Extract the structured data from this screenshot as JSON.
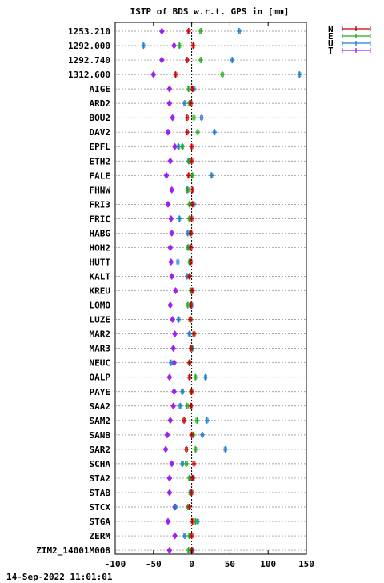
{
  "chart_data": {
    "type": "scatter",
    "title": "ISTP of BDS w.r.t. GPS in [mm]",
    "timestamp": "14-Sep-2022 11:01:01",
    "xlim": [
      -100,
      150
    ],
    "xticks": [
      -100,
      -50,
      0,
      50,
      100,
      150
    ],
    "grid": true,
    "legend_position": "top-right",
    "zero_line": true,
    "series": [
      {
        "name": "N",
        "color": "#cc0000"
      },
      {
        "name": "E",
        "color": "#22aa22"
      },
      {
        "name": "U",
        "color": "#1f7fd0"
      },
      {
        "name": "T",
        "color": "#a020f0"
      }
    ],
    "stations": [
      {
        "name": "1253.210",
        "values": [
          -4,
          12,
          62,
          -39
        ]
      },
      {
        "name": "1292.000",
        "values": [
          2,
          -16,
          -63,
          -23
        ]
      },
      {
        "name": "1292.740",
        "values": [
          -6,
          12,
          53,
          -39
        ]
      },
      {
        "name": "1312.600",
        "values": [
          -21,
          40,
          141,
          -50
        ]
      },
      {
        "name": "AIGE",
        "values": [
          1,
          -4,
          3,
          -29
        ]
      },
      {
        "name": "ARD2",
        "values": [
          -1,
          -3,
          -9,
          -29
        ]
      },
      {
        "name": "BOU2",
        "values": [
          -6,
          3,
          13,
          -25
        ]
      },
      {
        "name": "DAV2",
        "values": [
          -6,
          8,
          30,
          -31
        ]
      },
      {
        "name": "EPFL",
        "values": [
          0,
          -12,
          -17,
          -22
        ]
      },
      {
        "name": "ETH2",
        "values": [
          0,
          -3,
          -4,
          -28
        ]
      },
      {
        "name": "FALE",
        "values": [
          -4,
          1,
          26,
          -33
        ]
      },
      {
        "name": "FHNW",
        "values": [
          1,
          -5,
          -6,
          -26
        ]
      },
      {
        "name": "FRI3",
        "values": [
          1,
          -3,
          3,
          -31
        ]
      },
      {
        "name": "FRIC",
        "values": [
          0,
          -3,
          -16,
          -27
        ]
      },
      {
        "name": "HABG",
        "values": [
          -1,
          -1,
          -5,
          -26
        ]
      },
      {
        "name": "HOH2",
        "values": [
          -1,
          -5,
          -4,
          -28
        ]
      },
      {
        "name": "HUTT",
        "values": [
          -1,
          -3,
          -18,
          -27
        ]
      },
      {
        "name": "KALT",
        "values": [
          -3,
          -3,
          -6,
          -26
        ]
      },
      {
        "name": "KREU",
        "values": [
          1,
          -1,
          0,
          -21
        ]
      },
      {
        "name": "LOMO",
        "values": [
          -1,
          -5,
          0,
          -28
        ]
      },
      {
        "name": "LUZE",
        "values": [
          -2,
          -1,
          -17,
          -25
        ]
      },
      {
        "name": "MAR2",
        "values": [
          3,
          3,
          -3,
          -22
        ]
      },
      {
        "name": "MAR3",
        "values": [
          -1,
          0,
          1,
          -24
        ]
      },
      {
        "name": "NEUC",
        "values": [
          -3,
          -3,
          -27,
          -23
        ]
      },
      {
        "name": "OALP",
        "values": [
          -3,
          5,
          18,
          -29
        ]
      },
      {
        "name": "PAYE",
        "values": [
          0,
          -1,
          -12,
          -23
        ]
      },
      {
        "name": "SAA2",
        "values": [
          -1,
          -6,
          -15,
          -24
        ]
      },
      {
        "name": "SAM2",
        "values": [
          -10,
          7,
          20,
          -28
        ]
      },
      {
        "name": "SANB",
        "values": [
          0,
          2,
          14,
          -32
        ]
      },
      {
        "name": "SAR2",
        "values": [
          -7,
          5,
          44,
          -34
        ]
      },
      {
        "name": "SCHA",
        "values": [
          3,
          -7,
          -12,
          -26
        ]
      },
      {
        "name": "STA2",
        "values": [
          1,
          -3,
          2,
          -29
        ]
      },
      {
        "name": "STAB",
        "values": [
          0,
          -2,
          -1,
          -29
        ]
      },
      {
        "name": "STCX",
        "values": [
          -3,
          -5,
          -21,
          -22
        ]
      },
      {
        "name": "STGA",
        "values": [
          1,
          5,
          8,
          -31
        ]
      },
      {
        "name": "ZERM",
        "values": [
          0,
          -3,
          -9,
          -22
        ]
      },
      {
        "name": "ZIM2_14001M008",
        "values": [
          0,
          -4,
          1,
          -29
        ]
      }
    ]
  }
}
